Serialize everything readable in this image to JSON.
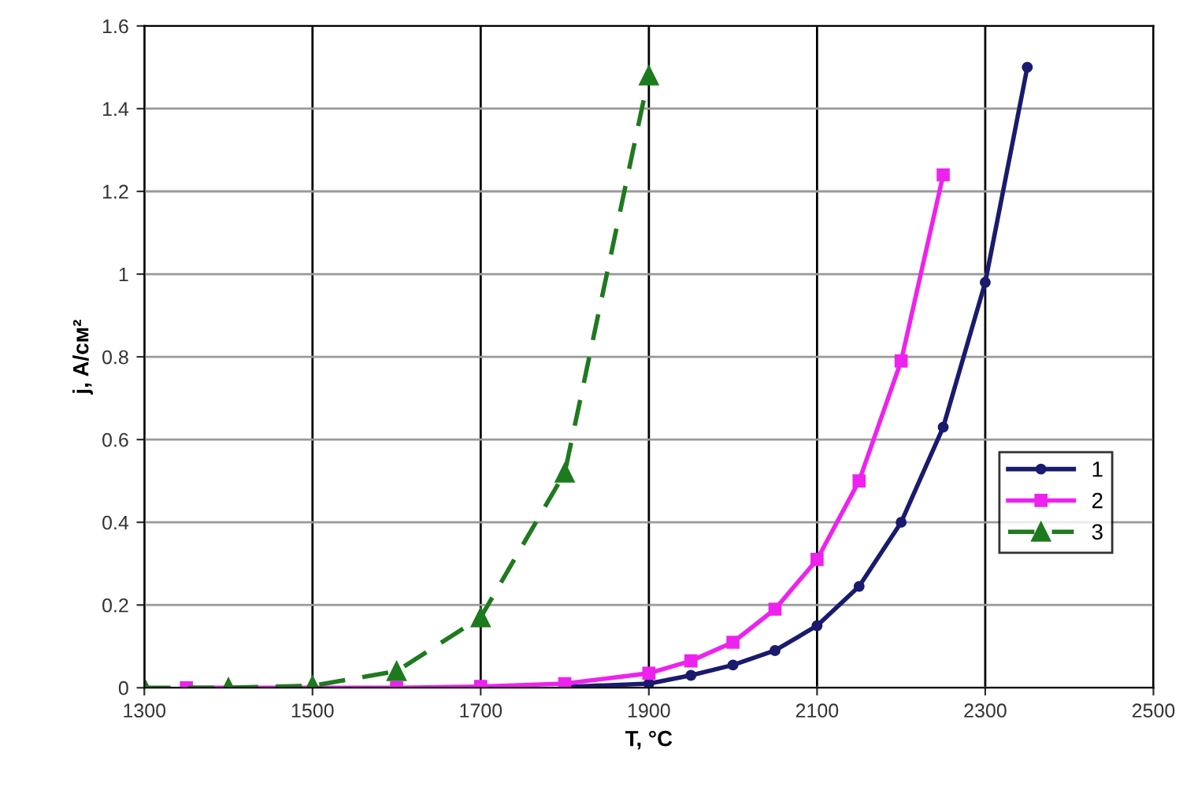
{
  "chart_data": {
    "type": "line",
    "xlabel": "T, °C",
    "ylabel": "j, A/см²",
    "xlim": [
      1300,
      2500
    ],
    "xticks": [
      1300,
      1500,
      1700,
      1900,
      2100,
      2300,
      2500
    ],
    "ylim": [
      0,
      1.6
    ],
    "yticks": [
      0,
      0.2,
      0.4,
      0.6,
      0.8,
      1,
      1.2,
      1.4,
      1.6
    ],
    "grid": true,
    "legend": "right",
    "series": [
      {
        "name": "1",
        "color": "#1a1a6e",
        "marker": "circle",
        "line_style": "solid",
        "x": [
          1800,
          1900,
          1950,
          2000,
          2050,
          2100,
          2150,
          2200,
          2250,
          2300,
          2350
        ],
        "values": [
          0.002,
          0.01,
          0.03,
          0.055,
          0.09,
          0.15,
          0.245,
          0.4,
          0.63,
          0.98,
          1.5
        ]
      },
      {
        "name": "2",
        "color": "#ee22ee",
        "marker": "square",
        "line_style": "solid",
        "x": [
          1350,
          1600,
          1700,
          1800,
          1900,
          1950,
          2000,
          2050,
          2100,
          2150,
          2200,
          2250
        ],
        "values": [
          0,
          0,
          0.003,
          0.01,
          0.035,
          0.065,
          0.11,
          0.19,
          0.31,
          0.5,
          0.79,
          1.24
        ]
      },
      {
        "name": "3",
        "color": "#1e7a1e",
        "marker": "triangle",
        "line_style": "dashed",
        "x": [
          1300,
          1400,
          1500,
          1600,
          1700,
          1800,
          1900
        ],
        "values": [
          0,
          0,
          0.005,
          0.04,
          0.17,
          0.52,
          1.48
        ]
      }
    ]
  }
}
